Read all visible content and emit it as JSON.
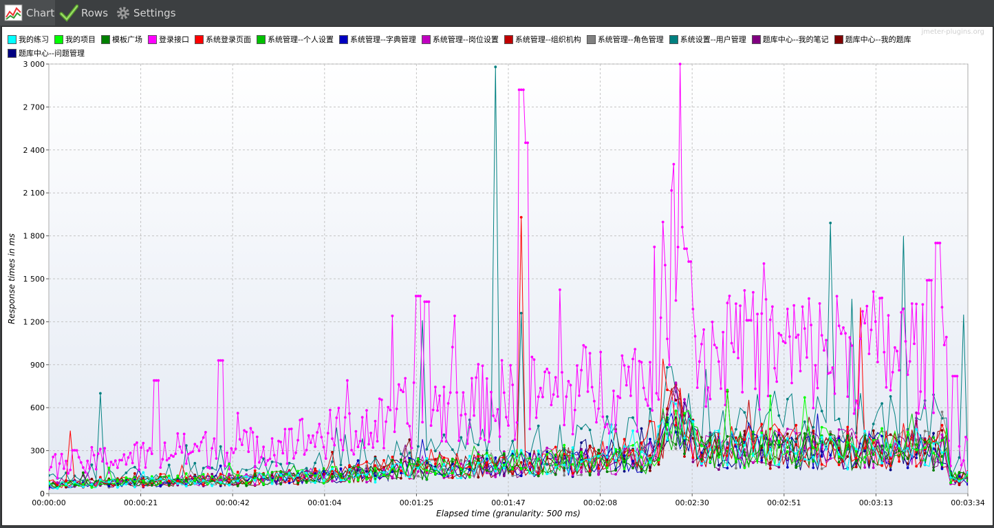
{
  "toolbar": {
    "tabs": [
      {
        "label": "Chart",
        "icon": "line-chart-icon"
      },
      {
        "label": "Rows",
        "icon": "checkmark-icon"
      },
      {
        "label": "Settings",
        "icon": "gear-icon"
      }
    ]
  },
  "watermark": "jmeter-plugins.org",
  "chart_data": {
    "type": "line",
    "ylabel": "Response times in ms",
    "xlabel": "Elapsed time (granularity: 500 ms)",
    "ylim": [
      0,
      3000
    ],
    "xlim_seconds": [
      0,
      214
    ],
    "yticks": [
      "0",
      "300",
      "600",
      "900",
      "1 200",
      "1 500",
      "1 800",
      "2 100",
      "2 400",
      "2 700",
      "3 000"
    ],
    "xticks": [
      "00:00:00",
      "00:00:21",
      "00:00:42",
      "00:01:04",
      "00:01:25",
      "00:01:47",
      "00:02:08",
      "00:02:30",
      "00:02:51",
      "00:03:13",
      "00:03:34"
    ],
    "grid": true,
    "legend_position": "top",
    "series": [
      {
        "name": "我的练习",
        "color": "#00ffff",
        "base": 1.0
      },
      {
        "name": "我的项目",
        "color": "#00ff00",
        "base": 1.05
      },
      {
        "name": "模板广场",
        "color": "#008000",
        "base": 0.95
      },
      {
        "name": "登录接口",
        "color": "#ff00ff",
        "base": 3.2,
        "peaks": [
          [
            25,
            790
          ],
          [
            40,
            930
          ],
          [
            86,
            1380
          ],
          [
            88,
            1340
          ],
          [
            110,
            2820
          ],
          [
            111,
            2450
          ],
          [
            148,
            1710
          ],
          [
            149,
            1620
          ],
          [
            163,
            1210
          ],
          [
            190,
            1190
          ],
          [
            205,
            1490
          ],
          [
            207,
            1750
          ],
          [
            211,
            820
          ]
        ]
      },
      {
        "name": "系统登录页面",
        "color": "#ff0000",
        "base": 1.1,
        "peaks": [
          [
            5,
            440
          ],
          [
            110,
            1930
          ],
          [
            189,
            1300
          ]
        ]
      },
      {
        "name": "系统管理--个人设置",
        "color": "#00c000",
        "base": 1.0
      },
      {
        "name": "系统管理--字典管理",
        "color": "#0000c0",
        "base": 0.98
      },
      {
        "name": "系统管理--岗位设置",
        "color": "#c000c0",
        "base": 1.02
      },
      {
        "name": "系统管理--组织机构",
        "color": "#c00000",
        "base": 1.0
      },
      {
        "name": "系统管理--角色管理",
        "color": "#808080",
        "base": 1.0
      },
      {
        "name": "系统设置--用户管理",
        "color": "#008080",
        "base": 1.6,
        "peaks": [
          [
            12,
            700
          ],
          [
            87,
            1210
          ],
          [
            104,
            2980
          ],
          [
            110,
            1260
          ],
          [
            182,
            1890
          ],
          [
            187,
            1360
          ],
          [
            199,
            1800
          ],
          [
            213,
            1250
          ]
        ]
      },
      {
        "name": "题库中心--我的笔记",
        "color": "#800080",
        "base": 0.97
      },
      {
        "name": "题库中心--我的题库",
        "color": "#800000",
        "base": 1.0
      },
      {
        "name": "题库中心--问题管理",
        "color": "#000080",
        "base": 0.95
      }
    ]
  }
}
